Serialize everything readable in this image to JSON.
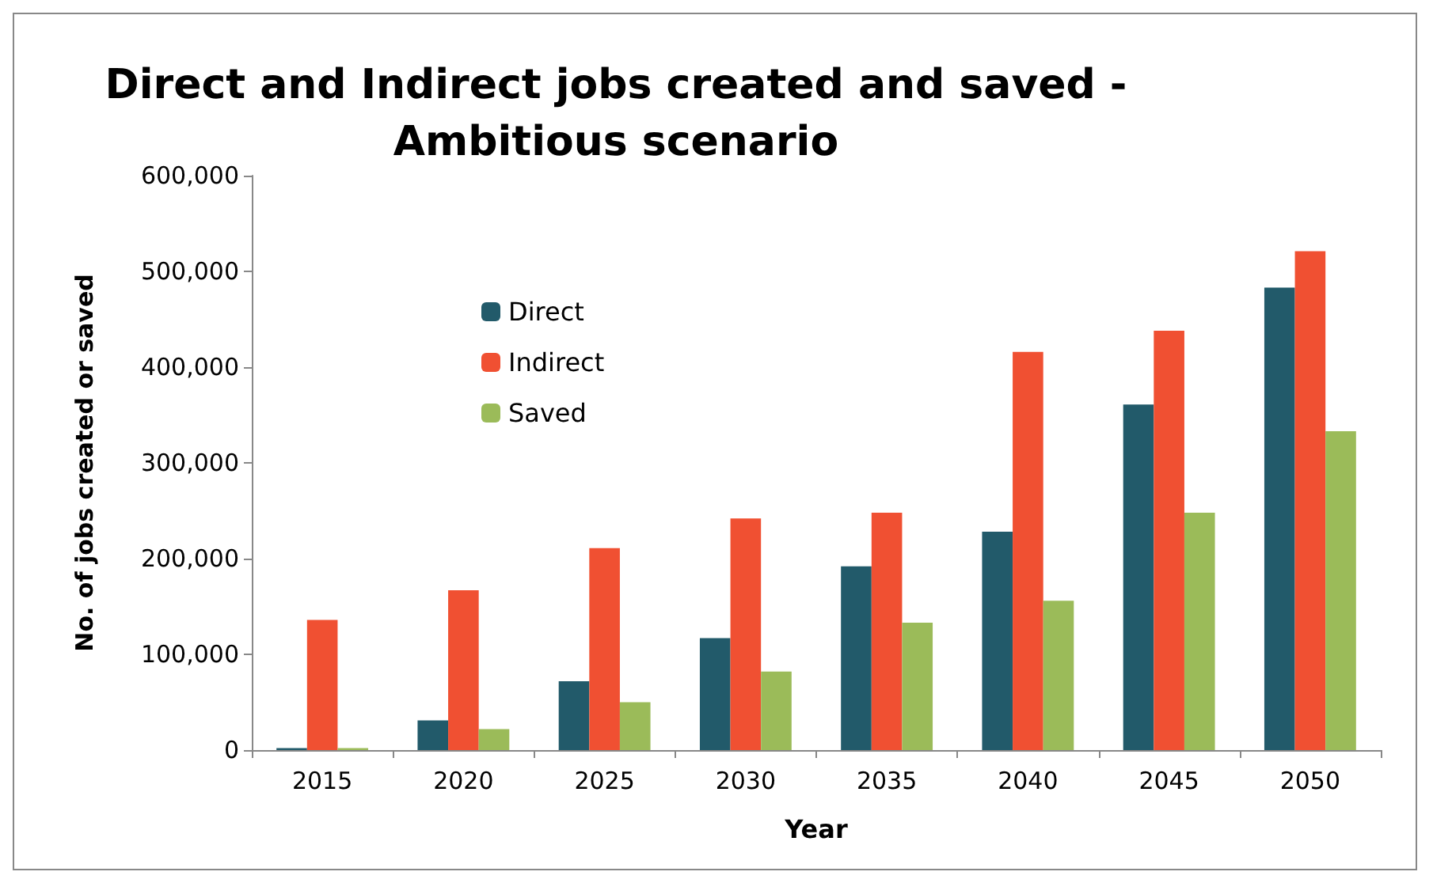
{
  "chart_data": {
    "type": "bar",
    "title": "Direct and Indirect jobs created and saved -\nAmbitious scenario",
    "xlabel": "Year",
    "ylabel": "No. of jobs created or saved",
    "categories": [
      "2015",
      "2020",
      "2025",
      "2030",
      "2035",
      "2040",
      "2045",
      "2050"
    ],
    "series": [
      {
        "name": "Direct",
        "color": "#225a6a",
        "values": [
          2000,
          31000,
          72000,
          117000,
          192000,
          228000,
          361000,
          483000
        ]
      },
      {
        "name": "Indirect",
        "color": "#f05032",
        "values": [
          136000,
          167000,
          211000,
          242000,
          248000,
          416000,
          438000,
          521000
        ]
      },
      {
        "name": "Saved",
        "color": "#9bbb59",
        "values": [
          2000,
          22000,
          50000,
          82000,
          133000,
          156000,
          248000,
          333000
        ]
      }
    ],
    "ylim": [
      0,
      600000
    ],
    "yticks": [
      0,
      {
        "value": 100000,
        "label": "100,000"
      },
      {
        "value": 200000,
        "label": "200,000"
      },
      {
        "value": 300000,
        "label": "300,000"
      },
      {
        "value": 400000,
        "label": "400,000"
      },
      {
        "value": 500000,
        "label": "500,000"
      },
      {
        "value": 600000,
        "label": "600,000"
      }
    ],
    "grid": false,
    "legend": "top left"
  }
}
